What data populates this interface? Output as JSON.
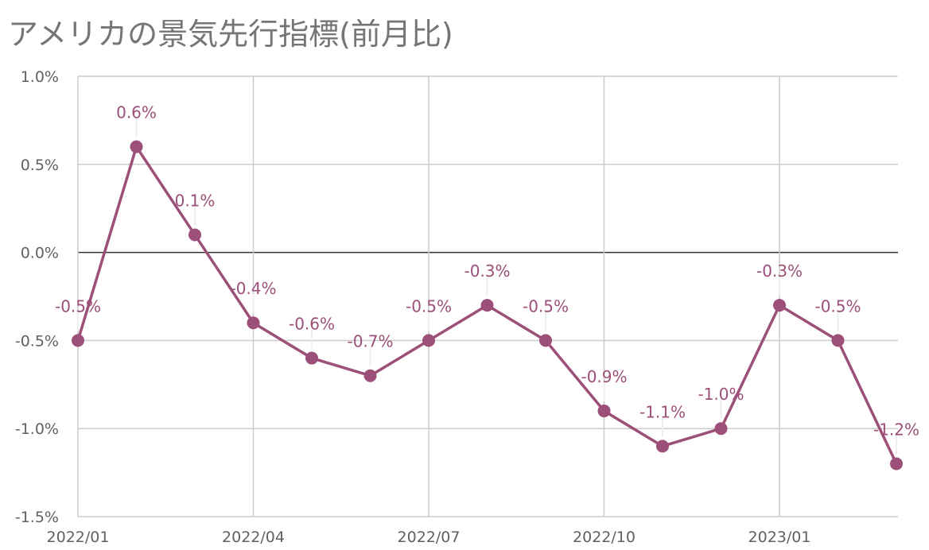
{
  "chart_data": {
    "type": "line",
    "title": "アメリカの景気先行指標(前月比)",
    "x": [
      "2022/01",
      "2022/02",
      "2022/03",
      "2022/04",
      "2022/05",
      "2022/06",
      "2022/07",
      "2022/08",
      "2022/09",
      "2022/10",
      "2022/11",
      "2022/12",
      "2023/01",
      "2023/02",
      "2023/03"
    ],
    "x_tick_labels": [
      "2022/01",
      "2022/04",
      "2022/07",
      "2022/10",
      "2023/01"
    ],
    "series": [
      {
        "values": [
          -0.5,
          0.6,
          0.1,
          -0.4,
          -0.6,
          -0.7,
          -0.5,
          -0.3,
          -0.5,
          -0.9,
          -1.1,
          -1.0,
          -0.3,
          -0.5,
          -1.2
        ],
        "data_labels": [
          "-0.5%",
          "0.6%",
          "0.1%",
          "-0.4%",
          "-0.6%",
          "-0.7%",
          "-0.5%",
          "-0.3%",
          "-0.5%",
          "-0.9%",
          "-1.1%",
          "-1.0%",
          "-0.3%",
          "-0.5%",
          "-1.2%"
        ]
      }
    ],
    "y_tick_values": [
      1.0,
      0.5,
      0.0,
      -0.5,
      -1.0,
      -1.5
    ],
    "y_tick_labels": [
      "1.0%",
      "0.5%",
      "0.0%",
      "-0.5%",
      "-1.0%",
      "-1.5%"
    ],
    "ylim": [
      -1.5,
      1.0
    ],
    "xlabel": "",
    "ylabel": "",
    "grid": true,
    "line_color": "#9c4f78",
    "grid_color": "#cccccc",
    "zero_line_color": "#333333",
    "label_color": "#616161"
  }
}
